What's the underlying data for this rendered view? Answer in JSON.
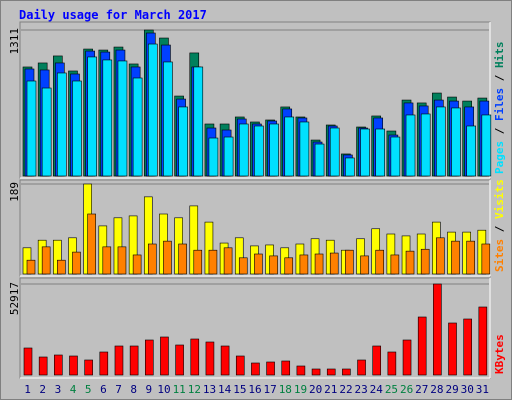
{
  "title": "Daily usage for March 2017",
  "legend_separator": " / ",
  "chart_data": [
    {
      "type": "bar",
      "ylim": [
        0,
        1311
      ],
      "yticks": [
        1311
      ],
      "series": [
        {
          "name": "Hits",
          "color": "#00805c",
          "values": [
            979,
            1015,
            1078,
            943,
            1140,
            1131,
            1158,
            1006,
            1311,
            1239,
            718,
            1105,
            467,
            467,
            530,
            485,
            503,
            620,
            530,
            323,
            458,
            198,
            440,
            539,
            404,
            682,
            656,
            745,
            709,
            673,
            700
          ]
        },
        {
          "name": "Files",
          "color": "#0040ff",
          "values": [
            961,
            952,
            1015,
            916,
            1122,
            1113,
            1131,
            979,
            1284,
            1176,
            691,
            979,
            431,
            413,
            512,
            467,
            494,
            602,
            521,
            305,
            449,
            189,
            431,
            521,
            368,
            656,
            629,
            682,
            673,
            620,
            673
          ]
        },
        {
          "name": "Pages",
          "color": "#00e0ff",
          "values": [
            853,
            790,
            925,
            853,
            1069,
            1042,
            1033,
            880,
            1185,
            1024,
            620,
            979,
            341,
            350,
            467,
            449,
            467,
            530,
            485,
            287,
            431,
            162,
            422,
            422,
            350,
            548,
            557,
            620,
            611,
            449,
            548
          ]
        }
      ]
    },
    {
      "type": "bar",
      "ylim": [
        0,
        189
      ],
      "yticks": [
        189
      ],
      "series": [
        {
          "name": "Visits",
          "color": "#ffff00",
          "values": [
            55,
            71,
            71,
            76,
            189,
            101,
            118,
            122,
            162,
            126,
            118,
            143,
            109,
            65,
            76,
            59,
            61,
            55,
            63,
            74,
            71,
            50,
            74,
            95,
            84,
            80,
            84,
            109,
            88,
            88,
            92
          ]
        },
        {
          "name": "Sites",
          "color": "#ff8000",
          "values": [
            29,
            57,
            29,
            46,
            126,
            57,
            57,
            40,
            63,
            69,
            63,
            50,
            50,
            55,
            34,
            42,
            38,
            34,
            40,
            42,
            44,
            50,
            38,
            50,
            40,
            48,
            52,
            76,
            69,
            69,
            63
          ]
        }
      ]
    },
    {
      "type": "bar",
      "ylim": [
        0,
        52917
      ],
      "yticks": [
        52917
      ],
      "categories": [
        "1",
        "2",
        "3",
        "4",
        "5",
        "6",
        "7",
        "8",
        "9",
        "10",
        "11",
        "12",
        "13",
        "14",
        "15",
        "16",
        "17",
        "18",
        "19",
        "20",
        "21",
        "22",
        "23",
        "24",
        "25",
        "26",
        "27",
        "28",
        "29",
        "30",
        "31"
      ],
      "category_colors": [
        "#000080",
        "#000080",
        "#000080",
        "#008040",
        "#008040",
        "#000080",
        "#000080",
        "#000080",
        "#000080",
        "#000080",
        "#008040",
        "#008040",
        "#000080",
        "#000080",
        "#000080",
        "#000080",
        "#000080",
        "#008040",
        "#008040",
        "#000080",
        "#000080",
        "#000080",
        "#000080",
        "#000080",
        "#008040",
        "#008040",
        "#000080",
        "#000080",
        "#000080",
        "#000080",
        "#000080"
      ],
      "series": [
        {
          "name": "KBytes",
          "color": "#ff0000",
          "values": [
            15700,
            10467,
            11630,
            11049,
            8723,
            13375,
            16864,
            16864,
            20353,
            22098,
            17445,
            20934,
            19190,
            16864,
            11049,
            6978,
            7560,
            8142,
            5234,
            3489,
            3489,
            3489,
            8723,
            16864,
            13375,
            20353,
            33727,
            52917,
            30238,
            32564,
            39542
          ]
        }
      ]
    }
  ]
}
